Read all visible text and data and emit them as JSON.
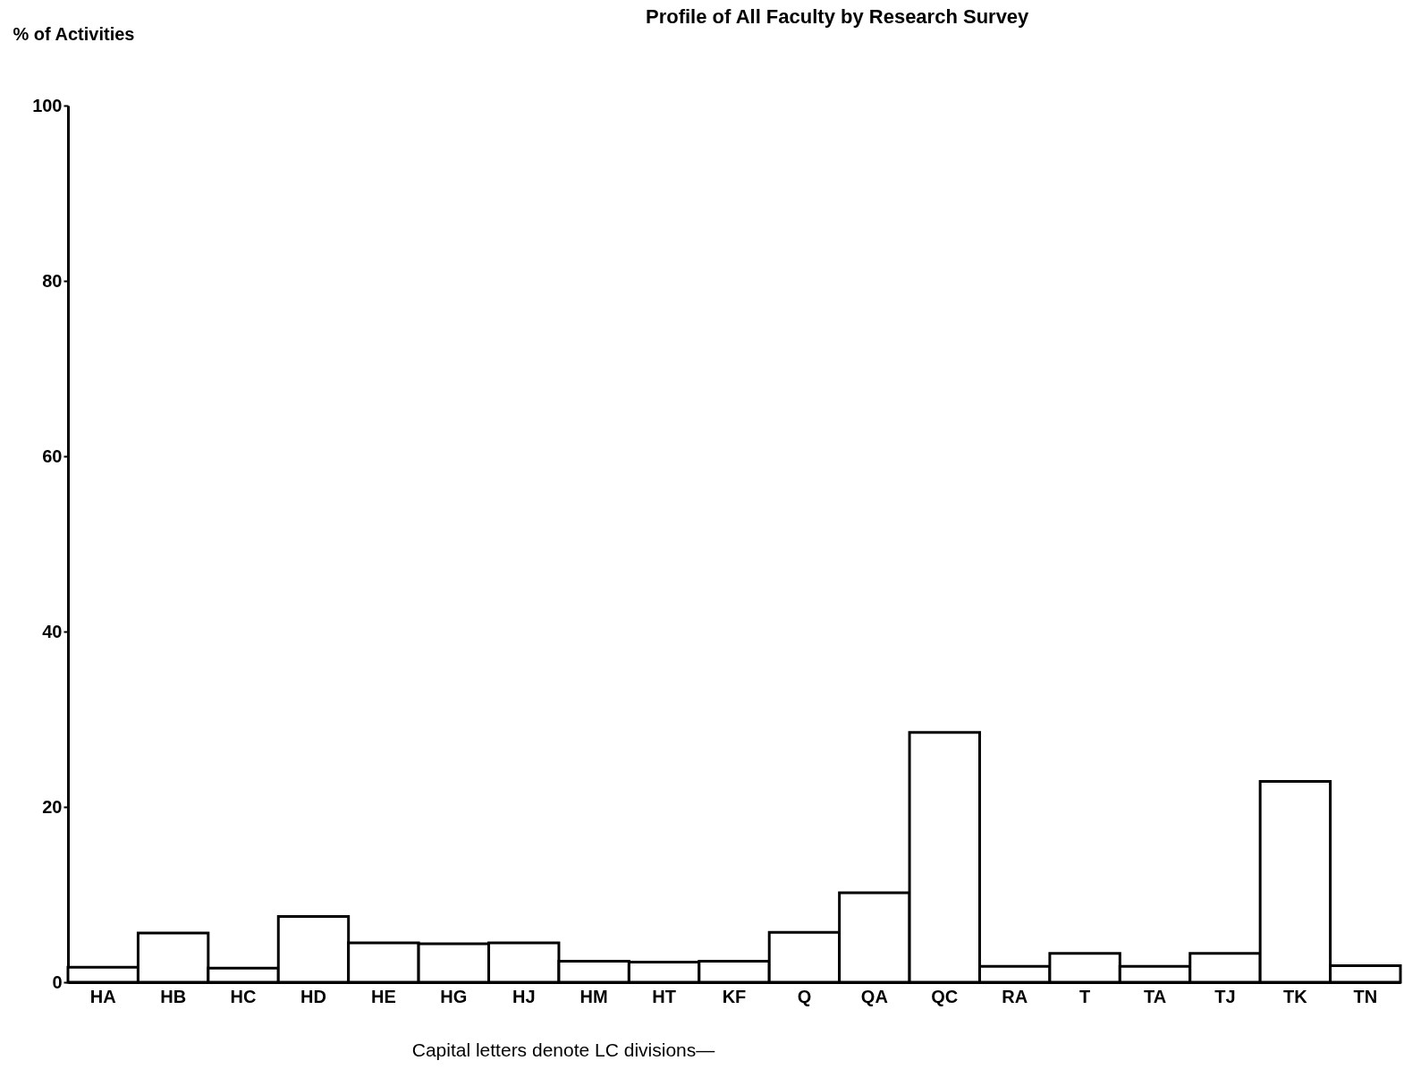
{
  "chart_data": {
    "type": "bar",
    "title": "Profile of All Faculty by Research Survey",
    "ylabel": "% of Activities",
    "categories": [
      "HA",
      "HB",
      "HC",
      "HD",
      "HE",
      "HG",
      "HJ",
      "HM",
      "HT",
      "KF",
      "Q",
      "QA",
      "QC",
      "RA",
      "T",
      "TA",
      "TJ",
      "TK",
      "TN"
    ],
    "values": [
      1.7,
      5.6,
      1.6,
      7.5,
      4.5,
      4.4,
      4.5,
      2.4,
      2.3,
      2.4,
      5.7,
      10.2,
      28.5,
      1.8,
      3.3,
      1.8,
      3.3,
      22.9,
      1.9
    ],
    "color": "#ffffff",
    "ylim": [
      0,
      100
    ],
    "yticks": [
      0,
      20,
      40,
      60,
      80,
      100
    ],
    "grid": false,
    "annotations": [
      "Capital letters denote LC divisions—"
    ]
  }
}
